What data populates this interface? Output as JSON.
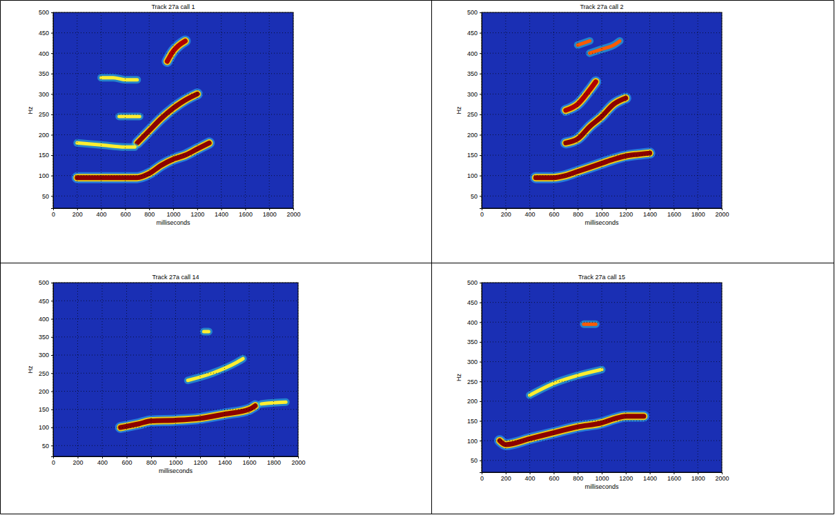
{
  "chart_data": [
    {
      "type": "line",
      "title": "Track 27a call 1",
      "x_label": "milliseconds",
      "y_label": "Hz",
      "xlim": [
        0,
        2000
      ],
      "ylim": [
        20,
        500
      ],
      "xticks": [
        0,
        200,
        400,
        600,
        800,
        1000,
        1200,
        1400,
        1600,
        1800,
        2000
      ],
      "yticks": [
        50,
        100,
        150,
        200,
        250,
        300,
        350,
        400,
        450,
        500
      ],
      "grid": true,
      "series": [
        {
          "x": [
            200,
            400,
            600,
            700,
            800,
            900,
            1000,
            1100,
            1200,
            1300
          ],
          "values": [
            95,
            95,
            95,
            95,
            105,
            125,
            140,
            150,
            165,
            180
          ],
          "color": "#8b0000"
        },
        {
          "x": [
            700,
            800,
            900,
            1000,
            1100,
            1200
          ],
          "values": [
            180,
            210,
            240,
            265,
            285,
            300
          ],
          "color": "#8b0000"
        },
        {
          "x": [
            950,
            1000,
            1050,
            1100
          ],
          "values": [
            380,
            405,
            420,
            430
          ],
          "color": "#b00000"
        },
        {
          "x": [
            200,
            400,
            600,
            680
          ],
          "values": [
            180,
            175,
            170,
            170
          ],
          "color": "#ffee30"
        },
        {
          "x": [
            400,
            500,
            600,
            700
          ],
          "values": [
            340,
            340,
            335,
            335
          ],
          "color": "#ffee30"
        },
        {
          "x": [
            550,
            650,
            720
          ],
          "values": [
            245,
            245,
            245
          ],
          "color": "#ffee30"
        }
      ]
    },
    {
      "type": "line",
      "title": "Track 27a call 2",
      "x_label": "milliseconds",
      "y_label": "Hz",
      "xlim": [
        0,
        2000
      ],
      "ylim": [
        20,
        500
      ],
      "xticks": [
        0,
        200,
        400,
        600,
        800,
        1000,
        1200,
        1400,
        1600,
        1800,
        2000
      ],
      "yticks": [
        50,
        100,
        150,
        200,
        250,
        300,
        350,
        400,
        450,
        500
      ],
      "grid": true,
      "series": [
        {
          "x": [
            450,
            600,
            700,
            800,
            900,
            1000,
            1100,
            1200,
            1300,
            1400
          ],
          "values": [
            95,
            95,
            100,
            110,
            120,
            130,
            140,
            148,
            152,
            155
          ],
          "color": "#8b0000"
        },
        {
          "x": [
            700,
            800,
            900,
            1000,
            1100,
            1200
          ],
          "values": [
            180,
            190,
            220,
            245,
            275,
            290
          ],
          "color": "#8b0000"
        },
        {
          "x": [
            700,
            800,
            900,
            950
          ],
          "values": [
            260,
            275,
            310,
            330
          ],
          "color": "#b00000"
        },
        {
          "x": [
            900,
            1000,
            1100,
            1150
          ],
          "values": [
            400,
            410,
            420,
            430
          ],
          "color": "#ff5a00"
        },
        {
          "x": [
            800,
            900
          ],
          "values": [
            420,
            430
          ],
          "color": "#ff5a00"
        }
      ]
    },
    {
      "type": "line",
      "title": "Track 27a call 14",
      "x_label": "milliseconds",
      "y_label": "Hz",
      "xlim": [
        0,
        2000
      ],
      "ylim": [
        20,
        500
      ],
      "xticks": [
        0,
        200,
        400,
        600,
        800,
        1000,
        1200,
        1400,
        1600,
        1800,
        2000
      ],
      "yticks": [
        50,
        100,
        150,
        200,
        250,
        300,
        350,
        400,
        450,
        500
      ],
      "grid": true,
      "series": [
        {
          "x": [
            550,
            700,
            800,
            1000,
            1200,
            1400,
            1600,
            1650
          ],
          "values": [
            100,
            110,
            118,
            120,
            125,
            137,
            150,
            160
          ],
          "color": "#8b0000"
        },
        {
          "x": [
            1700,
            1800,
            1900
          ],
          "values": [
            165,
            168,
            170
          ],
          "color": "#ffee30"
        },
        {
          "x": [
            1100,
            1300,
            1500,
            1550
          ],
          "values": [
            230,
            250,
            280,
            290
          ],
          "color": "#ffee30"
        },
        {
          "x": [
            1230,
            1270
          ],
          "values": [
            365,
            365
          ],
          "color": "#ffee30"
        }
      ]
    },
    {
      "type": "line",
      "title": "Track 27a call 15",
      "x_label": "milliseconds",
      "y_label": "Hz",
      "xlim": [
        0,
        2000
      ],
      "ylim": [
        20,
        500
      ],
      "xticks": [
        0,
        200,
        400,
        600,
        800,
        1000,
        1200,
        1400,
        1600,
        1800,
        2000
      ],
      "yticks": [
        50,
        100,
        150,
        200,
        250,
        300,
        350,
        400,
        450,
        500
      ],
      "grid": true,
      "series": [
        {
          "x": [
            150,
            200,
            400,
            600,
            800,
            1000,
            1100,
            1200,
            1350
          ],
          "values": [
            100,
            90,
            105,
            120,
            135,
            145,
            155,
            162,
            162
          ],
          "color": "#8b0000"
        },
        {
          "x": [
            400,
            600,
            800,
            1000
          ],
          "values": [
            215,
            245,
            265,
            280
          ],
          "color": "#ffee30"
        },
        {
          "x": [
            850,
            950
          ],
          "values": [
            395,
            395
          ],
          "color": "#ff5a00"
        }
      ]
    }
  ]
}
